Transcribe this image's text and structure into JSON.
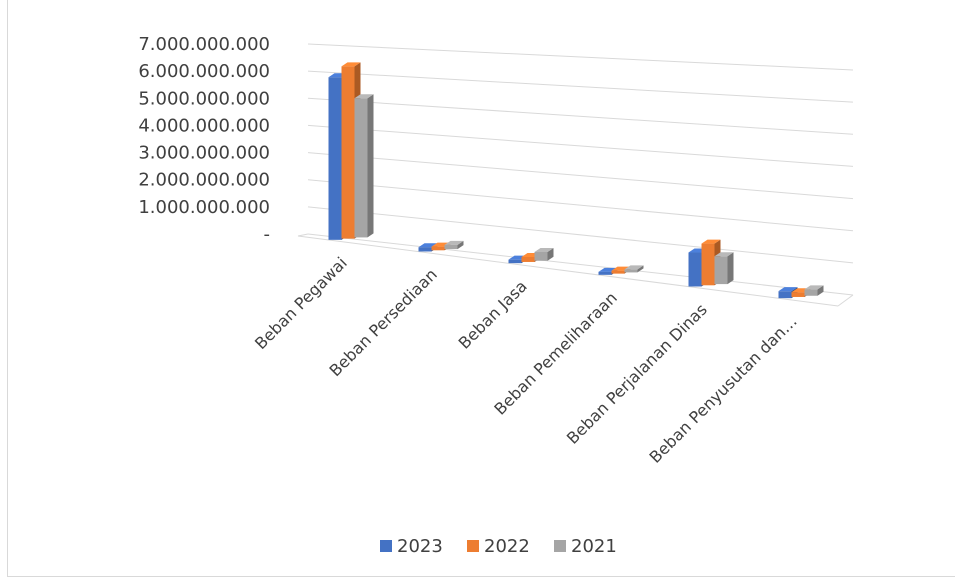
{
  "chart_data": {
    "type": "bar",
    "style": "3d-clustered-column",
    "categories": [
      "Beban Pegawai",
      "Beban Persediaan",
      "Beban Jasa",
      "Beban Pemeliharaan",
      "Beban Perjalanan Dinas",
      "Beban Penyusutan dan…"
    ],
    "series": [
      {
        "name": "2023",
        "color": "#4472c4",
        "values": [
          5900000000,
          150000000,
          120000000,
          60000000,
          1100000000,
          220000000
        ]
      },
      {
        "name": "2022",
        "color": "#ed7d31",
        "values": [
          6250000000,
          130000000,
          170000000,
          40000000,
          1350000000,
          150000000
        ]
      },
      {
        "name": "2021",
        "color": "#a5a5a5",
        "values": [
          5050000000,
          150000000,
          300000000,
          40000000,
          900000000,
          200000000
        ]
      }
    ],
    "yticks": [
      "-",
      "1.000.000.000",
      "2.000.000.000",
      "3.000.000.000",
      "4.000.000.000",
      "5.000.000.000",
      "6.000.000.000",
      "7.000.000.000"
    ],
    "ylim": [
      0,
      7000000000
    ],
    "grid": true,
    "legend_position": "bottom"
  }
}
